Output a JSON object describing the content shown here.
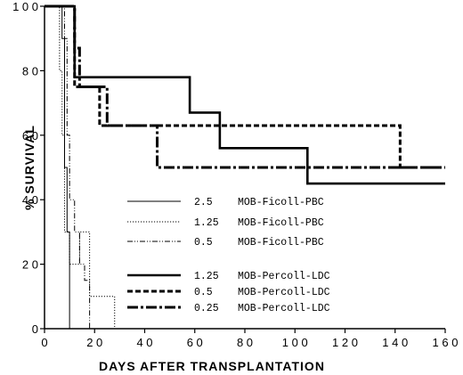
{
  "chart_data": {
    "type": "line",
    "step": true,
    "xlabel": "DAYS AFTER TRANSPLANTATION",
    "ylabel": "% SURVIVAL",
    "xlim": [
      0,
      160
    ],
    "ylim": [
      0,
      100
    ],
    "xticks": [
      0,
      20,
      40,
      60,
      80,
      100,
      120,
      140,
      160
    ],
    "yticks": [
      0,
      20,
      40,
      60,
      80,
      100
    ],
    "xtick_labels": [
      "0",
      "2 0",
      "4 0",
      "6 0",
      "8 0",
      "1 0 0",
      "1 2 0",
      "1 4 0",
      "1 6 0"
    ],
    "ytick_labels": [
      "0",
      "2 0",
      "4 0",
      "6 0",
      "8 0",
      "1 0 0"
    ],
    "grid": false,
    "legend_position": "center",
    "series": [
      {
        "name": "2.5  MOB-Ficoll-PBC",
        "style": "thin-solid",
        "x": [
          0,
          7,
          8,
          9,
          10,
          10
        ],
        "y": [
          100,
          90,
          50,
          30,
          30,
          0
        ]
      },
      {
        "name": "1.25  MOB-Ficoll-PBC",
        "style": "dotted",
        "x": [
          0,
          6,
          7,
          8,
          10,
          14,
          18,
          28,
          28
        ],
        "y": [
          100,
          80,
          60,
          30,
          20,
          30,
          10,
          10,
          0
        ]
      },
      {
        "name": "0.5  MOB-Ficoll-PBC",
        "style": "thin-dash-dot-dot",
        "x": [
          0,
          8,
          9,
          10,
          12,
          14,
          16,
          18,
          18
        ],
        "y": [
          100,
          90,
          60,
          40,
          30,
          20,
          15,
          10,
          0
        ]
      },
      {
        "name": "1.25  MOB-Percoll-LDC",
        "style": "thick-solid",
        "x": [
          0,
          9,
          12,
          58,
          70,
          105,
          160
        ],
        "y": [
          100,
          100,
          78,
          67,
          56,
          45,
          45
        ]
      },
      {
        "name": "0.5  MOB-Percoll-LDC",
        "style": "thick-dashed",
        "x": [
          0,
          12,
          22,
          142,
          160
        ],
        "y": [
          100,
          75,
          63,
          50,
          50
        ]
      },
      {
        "name": "0.25  MOB-Percoll-LDC",
        "style": "thick-dash-dot",
        "x": [
          0,
          12,
          14,
          25,
          45,
          160
        ],
        "y": [
          100,
          87,
          75,
          63,
          50,
          50
        ]
      }
    ]
  }
}
